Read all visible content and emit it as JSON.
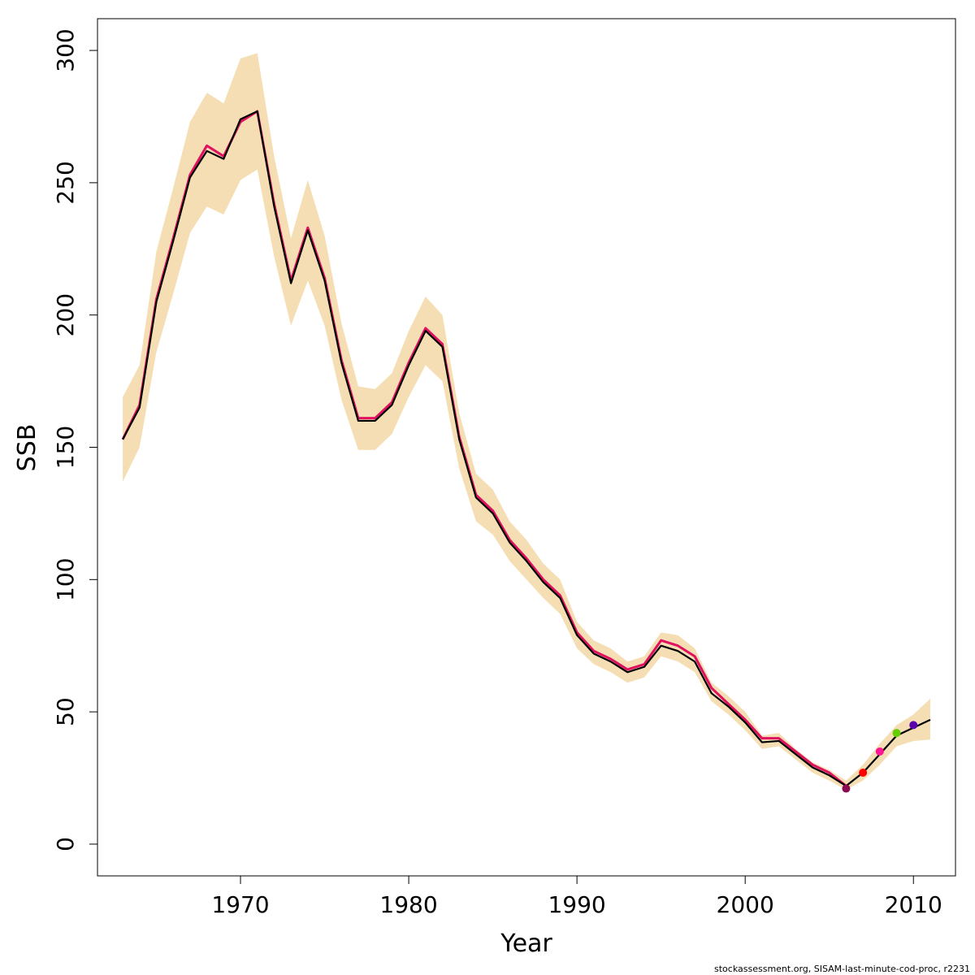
{
  "chart_data": {
    "type": "line",
    "xlabel": "Year",
    "ylabel": "SSB",
    "xlim": [
      1961.5,
      2012.5
    ],
    "ylim": [
      -12,
      312
    ],
    "x_ticks": [
      1970,
      1980,
      1990,
      2000,
      2010
    ],
    "y_ticks": [
      0,
      50,
      100,
      150,
      200,
      250,
      300
    ],
    "grid": false,
    "legend": "none",
    "credit": "stockassessment.org, SISAM-last-minute-cod-proc, r2231",
    "colors": {
      "band": "#F5DEB3",
      "base_line": "#000000",
      "retro_line": "#E0115F",
      "retro_points": [
        "#8B0A50",
        "#FF0000",
        "#FF1493",
        "#66CD00",
        "#5D00B0"
      ]
    },
    "series": [
      {
        "x": [
          1963,
          1964,
          1965,
          1966,
          1967,
          1968,
          1969,
          1970,
          1971,
          1972,
          1973,
          1974,
          1975,
          1976,
          1977,
          1978,
          1979,
          1980,
          1981,
          1982,
          1983,
          1984,
          1985,
          1986,
          1987,
          1988,
          1989,
          1990,
          1991,
          1992,
          1993,
          1994,
          1995,
          1996,
          1997,
          1998,
          1999,
          2000,
          2001,
          2002,
          2003,
          2004,
          2005,
          2006,
          2007,
          2008,
          2009,
          2010,
          2011
        ],
        "values": [
          153,
          165,
          205,
          228,
          252,
          262,
          259,
          274,
          277,
          241,
          212,
          232,
          213,
          182,
          160,
          160,
          166,
          181,
          194,
          188,
          153,
          131,
          125,
          114,
          107,
          99,
          93,
          79,
          72,
          69,
          65,
          67,
          75,
          73,
          69,
          57,
          52,
          46,
          38.5,
          39,
          34,
          29,
          26,
          22,
          27,
          34,
          41,
          44,
          47
        ],
        "lower": [
          137,
          150,
          186,
          208,
          231,
          241,
          238,
          251,
          255,
          222,
          196,
          213,
          196,
          168,
          149,
          149,
          155,
          169,
          181,
          175,
          142,
          122,
          117,
          107,
          100,
          93,
          87,
          74,
          68,
          65,
          61,
          63,
          71,
          69,
          65,
          54,
          49,
          43,
          36,
          37,
          32,
          27,
          24,
          20.5,
          24,
          30,
          37,
          39,
          39.5
        ],
        "upper": [
          169,
          181,
          224,
          248,
          273,
          284,
          280,
          297,
          299,
          260,
          229,
          251,
          230,
          197,
          173,
          172,
          178,
          194,
          207,
          200,
          163,
          140,
          134,
          122,
          115,
          106,
          100,
          84,
          77,
          74,
          69,
          71,
          80,
          79,
          74,
          61,
          56,
          50,
          41,
          42,
          36,
          31,
          28,
          24,
          30,
          38,
          45,
          49,
          55
        ]
      },
      {
        "x": [
          1963,
          1964,
          1965,
          1966,
          1967,
          1968,
          1969,
          1970,
          1971,
          1972,
          1973,
          1974,
          1975,
          1976,
          1977,
          1978,
          1979,
          1980,
          1981,
          1982,
          1983,
          1984,
          1985,
          1986,
          1987,
          1988,
          1989,
          1990,
          1991,
          1992,
          1993,
          1994,
          1995,
          1996,
          1997,
          1998,
          1999,
          2000,
          2001,
          2002,
          2003,
          2004,
          2005,
          2006
        ],
        "values": [
          153,
          166,
          206,
          229,
          253,
          264,
          260,
          273,
          277,
          242,
          213,
          233,
          214,
          183,
          161,
          161,
          167,
          182,
          195,
          189,
          154,
          132,
          126,
          115,
          108,
          100,
          94,
          80,
          73,
          70,
          66,
          68,
          77,
          75,
          71,
          59,
          53,
          47,
          40,
          40,
          35,
          30,
          27,
          22
        ]
      }
    ],
    "points": [
      {
        "x": 2006,
        "y": 21
      },
      {
        "x": 2007,
        "y": 27
      },
      {
        "x": 2008,
        "y": 35
      },
      {
        "x": 2009,
        "y": 42
      },
      {
        "x": 2010,
        "y": 45
      }
    ]
  }
}
